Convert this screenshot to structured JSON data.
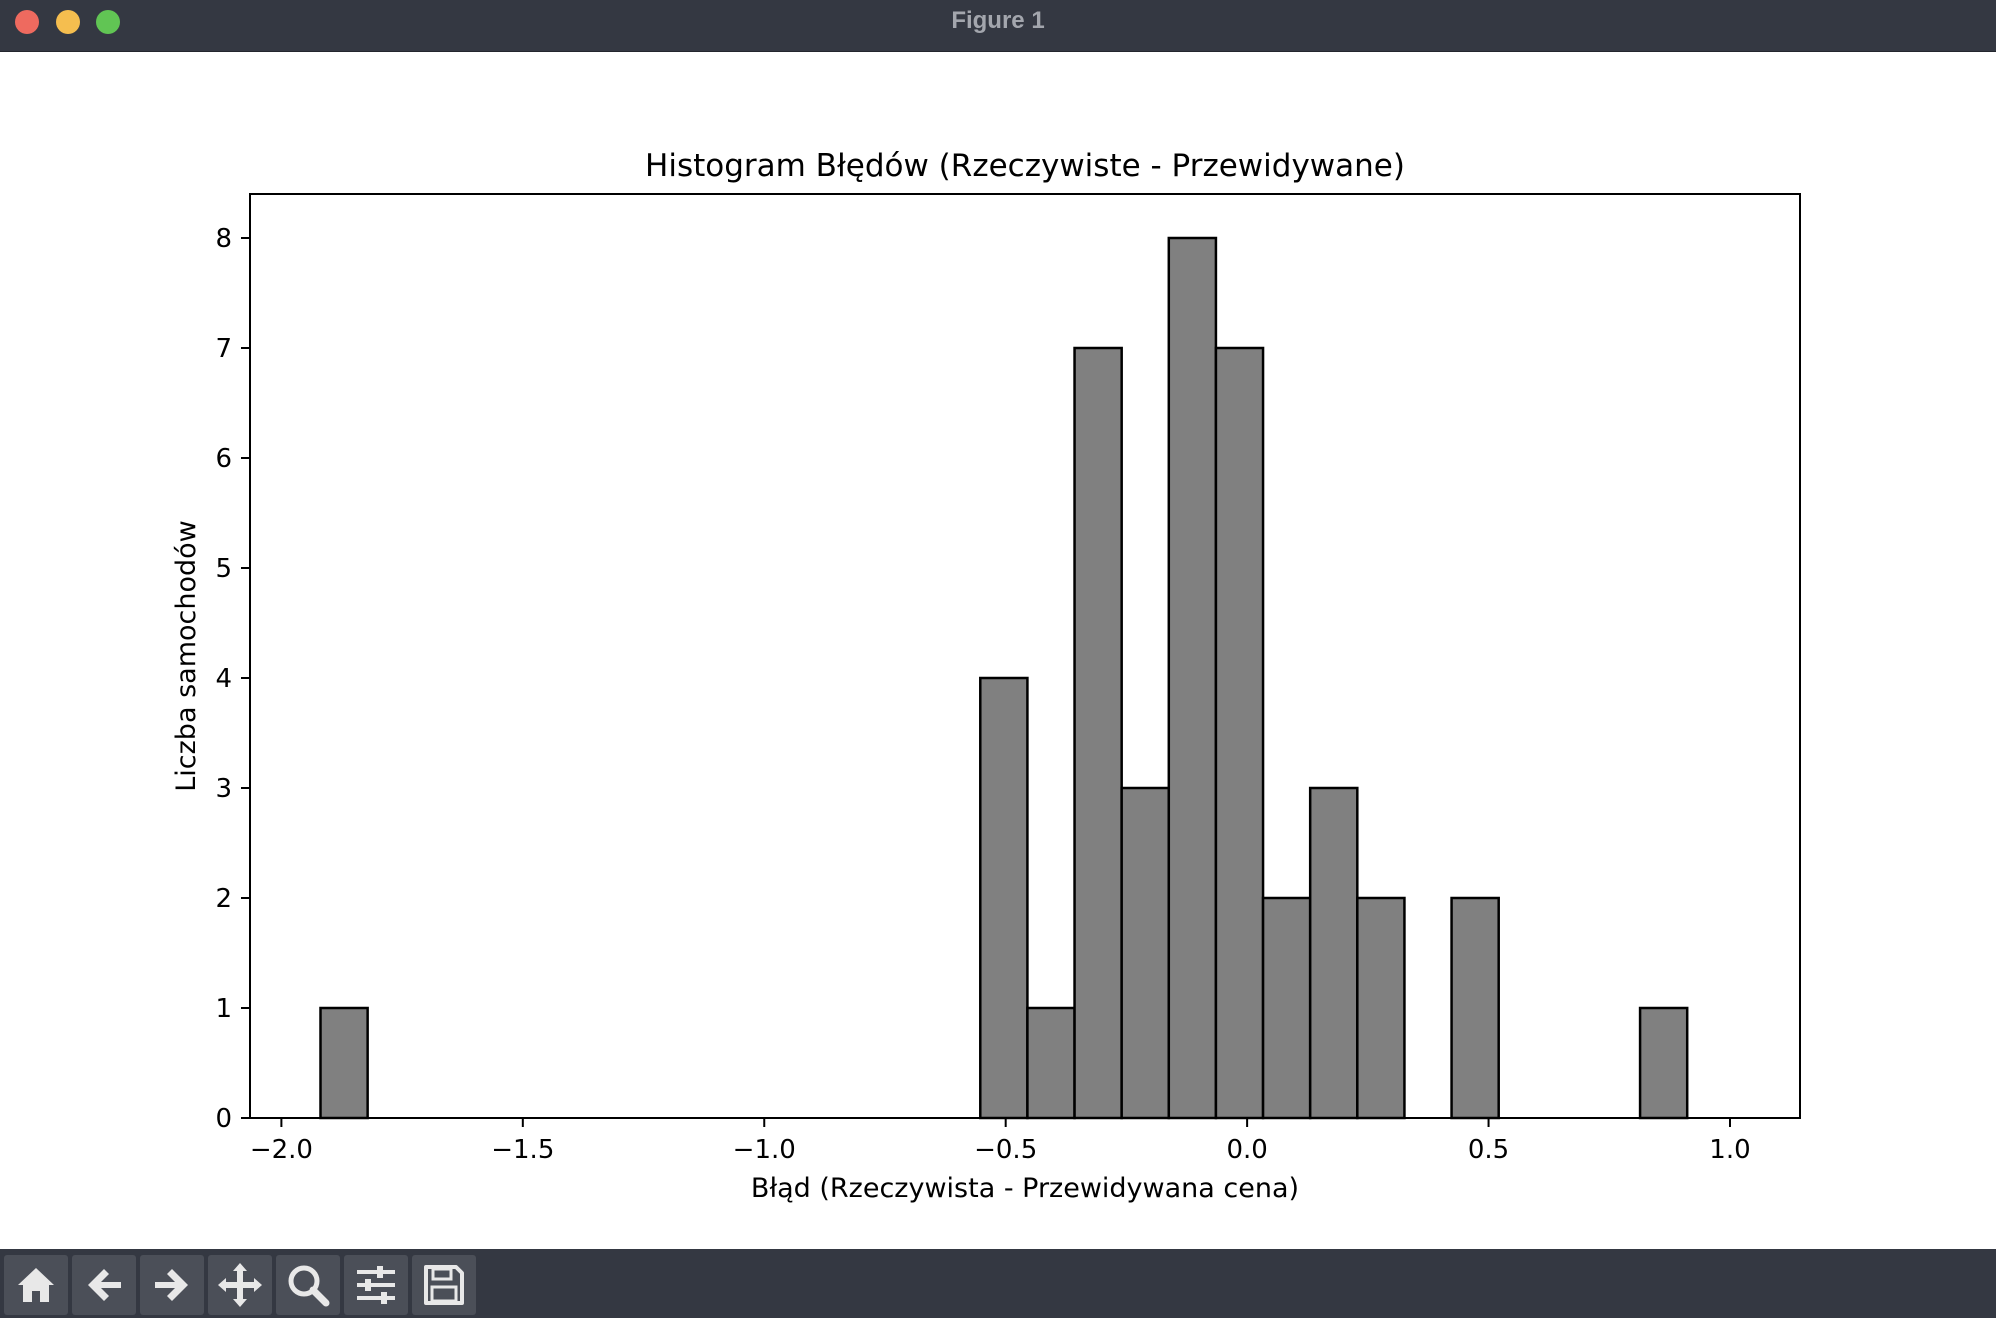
{
  "window": {
    "title": "Figure 1"
  },
  "toolbar": {
    "buttons": [
      {
        "name": "home-button",
        "icon": "home-icon"
      },
      {
        "name": "back-button",
        "icon": "arrow-left-icon"
      },
      {
        "name": "forward-button",
        "icon": "arrow-right-icon"
      },
      {
        "name": "pan-button",
        "icon": "move-icon"
      },
      {
        "name": "zoom-button",
        "icon": "magnifier-icon"
      },
      {
        "name": "configure-subplots-button",
        "icon": "sliders-icon"
      },
      {
        "name": "save-button",
        "icon": "floppy-disk-icon"
      }
    ]
  },
  "chart_data": {
    "type": "bar",
    "title": "Histogram Błędów (Rzeczywiste - Przewidywane)",
    "xlabel": "Błąd (Rzeczywista - Przewidywana cena)",
    "ylabel": "Liczba samochodów",
    "xlim": [
      -2.065,
      1.145
    ],
    "ylim": [
      0,
      8.4
    ],
    "xticks": [
      -2.0,
      -1.5,
      -1.0,
      -0.5,
      0.0,
      0.5,
      1.0
    ],
    "xtick_labels": [
      "−2.0",
      "−1.5",
      "−1.0",
      "−0.5",
      "0.0",
      "0.5",
      "1.0"
    ],
    "yticks": [
      0,
      1,
      2,
      3,
      4,
      5,
      6,
      7,
      8
    ],
    "ytick_labels": [
      "0",
      "1",
      "2",
      "3",
      "4",
      "5",
      "6",
      "7",
      "8"
    ],
    "bin_start": -1.919,
    "bin_width": 0.0976,
    "counts": [
      1,
      0,
      0,
      0,
      0,
      0,
      0,
      0,
      0,
      0,
      0,
      0,
      0,
      0,
      4,
      1,
      7,
      3,
      8,
      7,
      2,
      3,
      2,
      0,
      2,
      0,
      0,
      0,
      1
    ],
    "bar_color": "#808080",
    "edge_color": "#000000",
    "grid": false
  }
}
